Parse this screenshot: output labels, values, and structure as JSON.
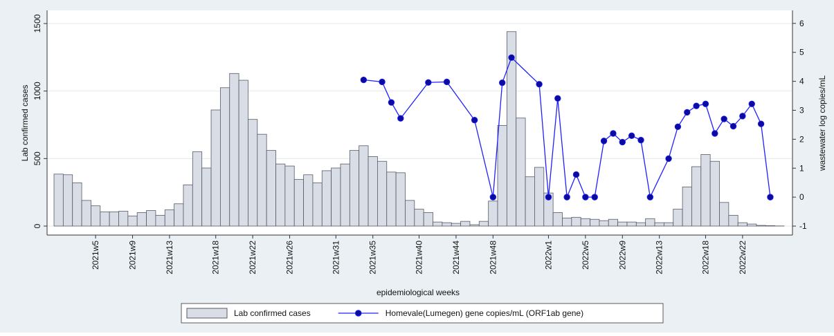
{
  "chart_data": {
    "type": "bar-line",
    "x_label": "epidemiological weeks",
    "y_label": "Lab confirmed cases",
    "y2_label": "wastewater log copies/mL",
    "xlim": [
      -0.25,
      80.4
    ],
    "xticks": [
      {
        "value": 5,
        "label": "2021w5"
      },
      {
        "value": 9,
        "label": "2021w9"
      },
      {
        "value": 13,
        "label": "2021w13"
      },
      {
        "value": 18,
        "label": "2021w18"
      },
      {
        "value": 22,
        "label": "2021w22"
      },
      {
        "value": 26,
        "label": "2021w26"
      },
      {
        "value": 31,
        "label": "2021w31"
      },
      {
        "value": 35,
        "label": "2021w35"
      },
      {
        "value": 40,
        "label": "2021w40"
      },
      {
        "value": 44,
        "label": "2021w44"
      },
      {
        "value": 48,
        "label": "2021w48"
      },
      {
        "value": 54,
        "label": "2022w1"
      },
      {
        "value": 58,
        "label": "2022w5"
      },
      {
        "value": 62,
        "label": "2022w9"
      },
      {
        "value": 66,
        "label": "2022w13"
      },
      {
        "value": 71,
        "label": "2022w18"
      },
      {
        "value": 75,
        "label": "2022w22"
      }
    ],
    "ylim": [
      -66.6,
      1597.5
    ],
    "yticks": [
      0,
      500,
      1000,
      1500
    ],
    "y2lim": [
      -1.31,
      6.45
    ],
    "y2ticks": [
      -1,
      0,
      1,
      2,
      3,
      4,
      5,
      6
    ],
    "grid": true,
    "legend": "bottom",
    "series": [
      {
        "name": "Lab confirmed cases",
        "type": "bar",
        "color": "#d9dde6",
        "x": [
          1,
          2,
          3,
          4,
          5,
          6,
          7,
          8,
          9,
          10,
          11,
          12,
          13,
          14,
          15,
          16,
          17,
          18,
          19,
          20,
          21,
          22,
          23,
          24,
          25,
          26,
          27,
          28,
          29,
          30,
          31,
          32,
          33,
          34,
          35,
          36,
          37,
          38,
          39,
          40,
          41,
          42,
          43,
          44,
          45,
          46,
          47,
          48,
          49,
          50,
          51,
          52,
          53,
          54,
          55,
          56,
          57,
          58,
          59,
          60,
          61,
          62,
          63,
          64,
          65,
          66,
          67,
          68,
          69,
          70,
          71,
          72,
          73,
          74,
          75,
          76,
          77,
          78,
          79
        ],
        "values": [
          385,
          380,
          320,
          190,
          150,
          105,
          105,
          110,
          75,
          100,
          115,
          80,
          120,
          165,
          305,
          550,
          430,
          860,
          1025,
          1130,
          1080,
          790,
          680,
          560,
          460,
          445,
          345,
          380,
          320,
          410,
          430,
          460,
          560,
          595,
          515,
          480,
          400,
          395,
          190,
          125,
          100,
          30,
          25,
          20,
          35,
          10,
          35,
          185,
          745,
          1440,
          800,
          365,
          435,
          245,
          100,
          60,
          65,
          55,
          50,
          40,
          50,
          30,
          30,
          25,
          55,
          25,
          25,
          125,
          290,
          440,
          530,
          480,
          175,
          80,
          25,
          15,
          5,
          3,
          1
        ]
      },
      {
        "name": "Homevale(Lumegen) gene copies/mL (ORF1ab gene)",
        "type": "line",
        "axis": "y2",
        "color": "#1f1fff",
        "marker_color": "#0b0b9e",
        "x": [
          34,
          36,
          37,
          38,
          41,
          43,
          46,
          48,
          49,
          50,
          53,
          54,
          55,
          56,
          57,
          58,
          59,
          60,
          61,
          62,
          63,
          64,
          65,
          67,
          68,
          69,
          70,
          71,
          72,
          73,
          74,
          75,
          76,
          77,
          78
        ],
        "values": [
          4.05,
          3.98,
          3.27,
          2.72,
          3.96,
          3.98,
          2.66,
          0,
          3.95,
          4.82,
          3.9,
          0,
          3.41,
          0,
          0.78,
          0,
          0,
          1.94,
          2.2,
          1.9,
          2.12,
          1.97,
          0,
          1.33,
          2.43,
          2.93,
          3.15,
          3.22,
          2.2,
          2.7,
          2.45,
          2.8,
          3.22,
          2.53,
          0
        ]
      }
    ]
  }
}
